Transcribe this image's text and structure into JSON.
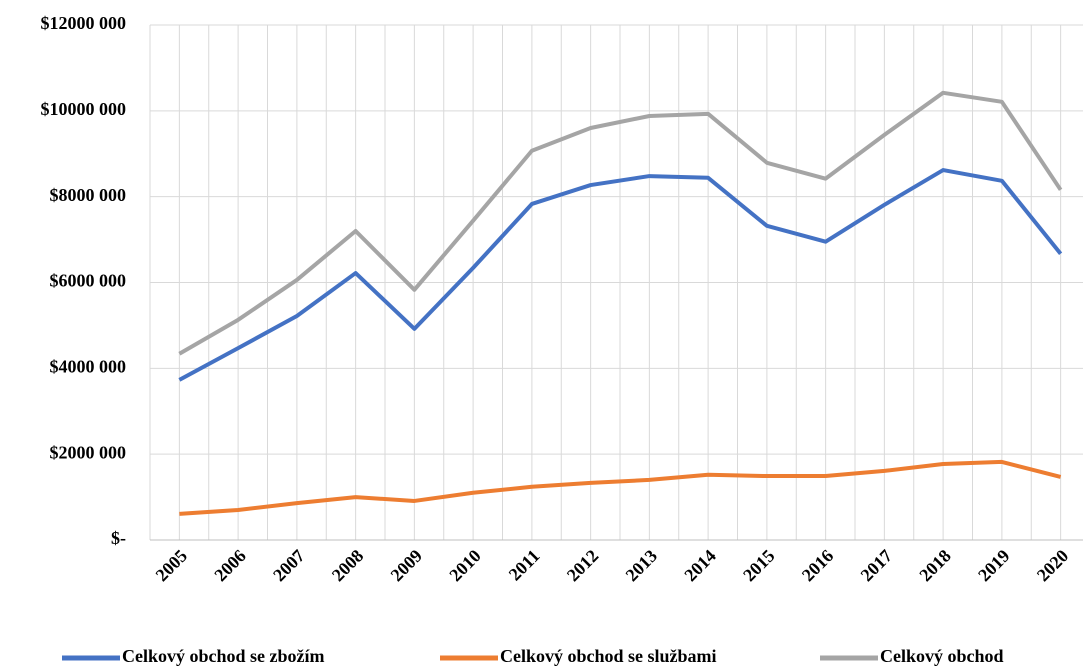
{
  "chart_data": {
    "type": "line",
    "categories": [
      "2005",
      "2006",
      "2007",
      "2008",
      "2009",
      "2010",
      "2011",
      "2012",
      "2013",
      "2014",
      "2015",
      "2016",
      "2017",
      "2018",
      "2019",
      "2020"
    ],
    "series": [
      {
        "name": "Celkový obchod se zbožím",
        "color": "#4472c4",
        "values": [
          3730000,
          4470000,
          5220000,
          6220000,
          4920000,
          6340000,
          7830000,
          8270000,
          8480000,
          8440000,
          7320000,
          6950000,
          7810000,
          8620000,
          8370000,
          6670000
        ]
      },
      {
        "name": "Celkový obchod se službami",
        "color": "#ed7d31",
        "values": [
          610000,
          700000,
          860000,
          1000000,
          910000,
          1100000,
          1240000,
          1330000,
          1400000,
          1520000,
          1490000,
          1490000,
          1610000,
          1770000,
          1820000,
          1470000
        ]
      },
      {
        "name": "Celkový obchod",
        "color": "#a5a5a5",
        "values": [
          4340000,
          5130000,
          6060000,
          7200000,
          5830000,
          7440000,
          9070000,
          9600000,
          9880000,
          9930000,
          8790000,
          8420000,
          9440000,
          10420000,
          10210000,
          8160000
        ]
      }
    ],
    "ylim": [
      0,
      12000000
    ],
    "yticks": [
      {
        "value": 0,
        "label": "$-"
      },
      {
        "value": 2000000,
        "label": "$2000 000"
      },
      {
        "value": 4000000,
        "label": "$4000 000"
      },
      {
        "value": 6000000,
        "label": "$6000 000"
      },
      {
        "value": 8000000,
        "label": "$8000 000"
      },
      {
        "value": 10000000,
        "label": "$10000 000"
      },
      {
        "value": 12000000,
        "label": "$12000 000"
      }
    ],
    "grid": true,
    "legend": "bottom"
  }
}
